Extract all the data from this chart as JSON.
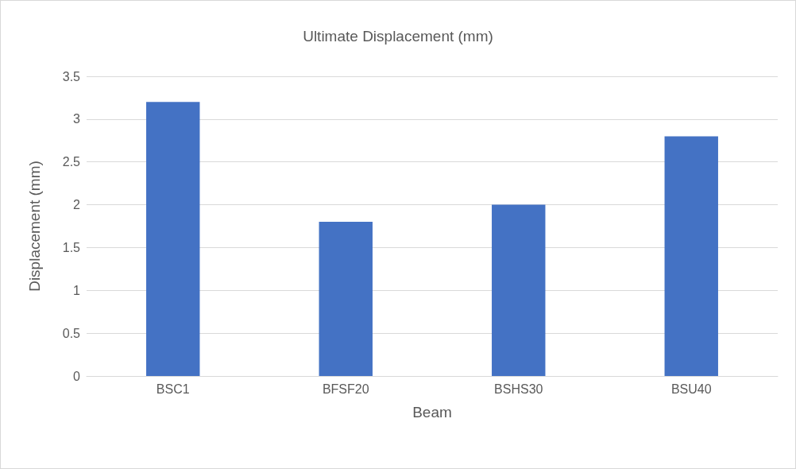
{
  "chart_data": {
    "type": "bar",
    "title": "Ultimate Displacement (mm)",
    "xlabel": "Beam",
    "ylabel": "Displacement (mm)",
    "categories": [
      "BSC1",
      "BFSF20",
      "BSHS30",
      "BSU40"
    ],
    "values": [
      3.2,
      1.8,
      2.0,
      2.8
    ],
    "color": "#4472c4",
    "ylim": [
      0,
      3.5
    ],
    "yticks": [
      0,
      0.5,
      1,
      1.5,
      2,
      2.5,
      3,
      3.5
    ],
    "grid": "y"
  }
}
